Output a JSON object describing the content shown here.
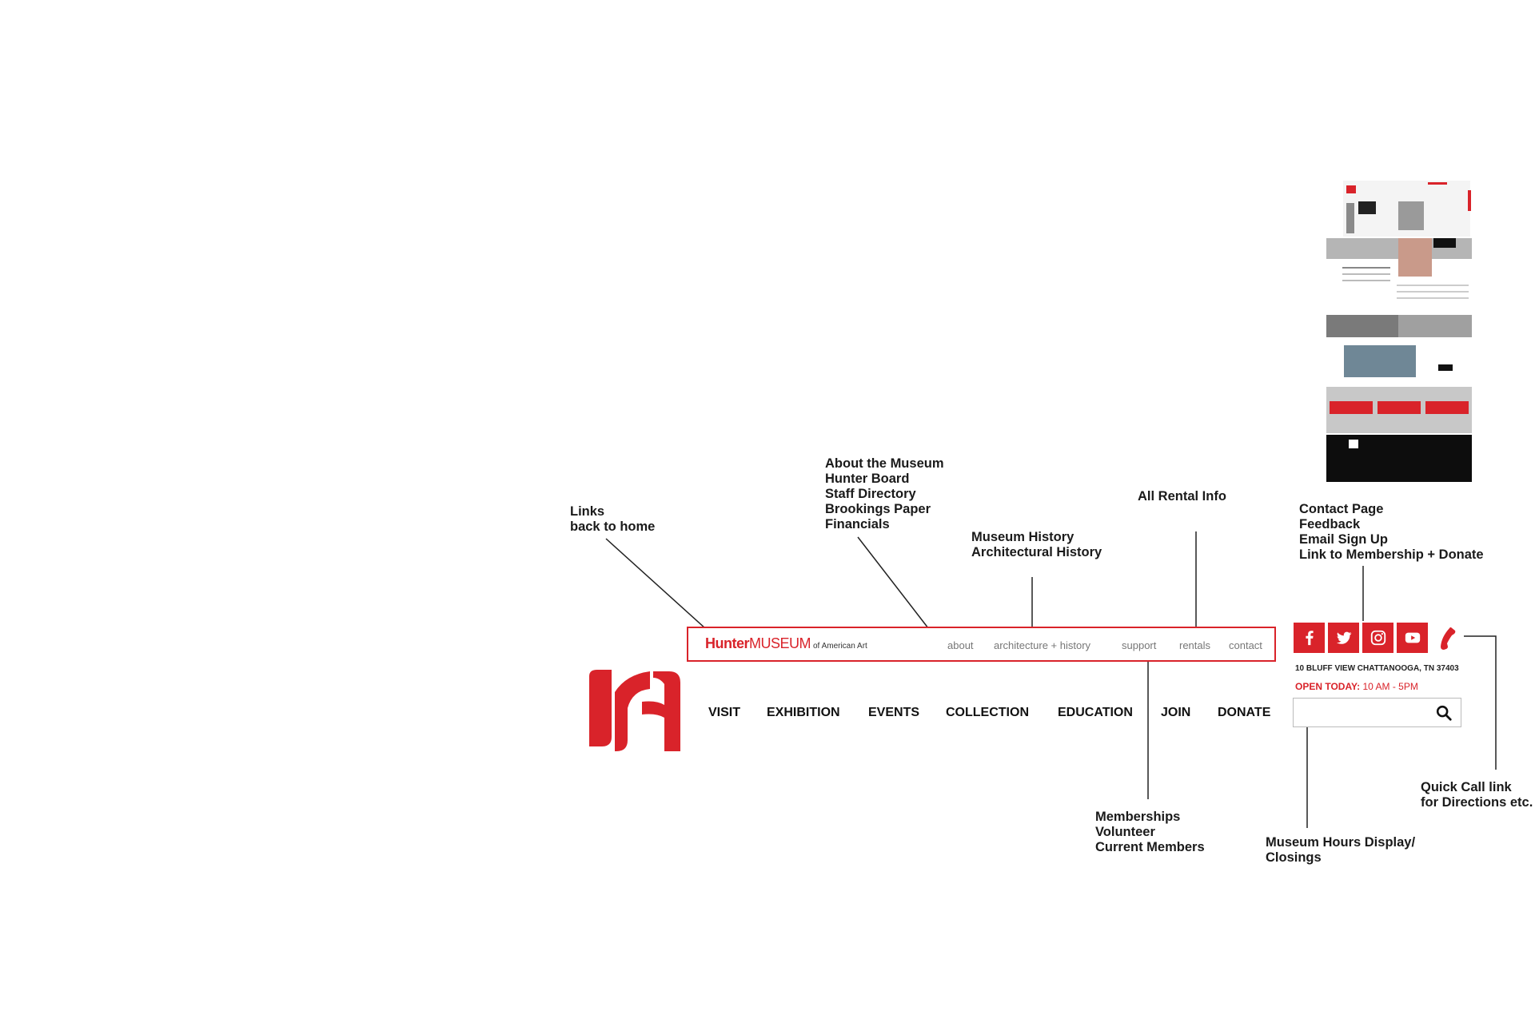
{
  "colors": {
    "brand_red": "#d9232a",
    "text": "#111111",
    "util_link": "#777777"
  },
  "annotations": {
    "home": [
      "Links",
      "back to home"
    ],
    "about": [
      "About the Museum",
      "Hunter Board",
      "Staff Directory",
      "Brookings Paper",
      "Financials"
    ],
    "history": [
      "Museum History",
      "Architectural History"
    ],
    "rentals": [
      "All Rental Info"
    ],
    "contact": [
      "Contact Page",
      "Feedback",
      "Email Sign Up",
      "Link to Membership + Donate"
    ],
    "support": [
      "Memberships",
      "Volunteer",
      "Current Members"
    ],
    "hours": [
      "Museum Hours Display/",
      "Closings"
    ],
    "quickcall": [
      "Quick Call link",
      "for Directions etc."
    ]
  },
  "utility_bar": {
    "brand_hunter": "Hunter",
    "brand_museum": "MUSEUM",
    "brand_of": "of American Art",
    "links": [
      "about",
      "architecture + history",
      "support",
      "rentals",
      "contact"
    ]
  },
  "main_nav": [
    "VISIT",
    "EXHIBITION",
    "EVENTS",
    "COLLECTION",
    "EDUCATION",
    "JOIN",
    "DONATE"
  ],
  "social": [
    "facebook-icon",
    "twitter-icon",
    "instagram-icon",
    "youtube-icon",
    "phone-icon"
  ],
  "address": "10 BLUFF VIEW CHATTANOOGA, TN 37403",
  "hours": {
    "label": "OPEN TODAY:",
    "value": "10 AM - 5PM"
  },
  "search": {
    "placeholder": ""
  }
}
